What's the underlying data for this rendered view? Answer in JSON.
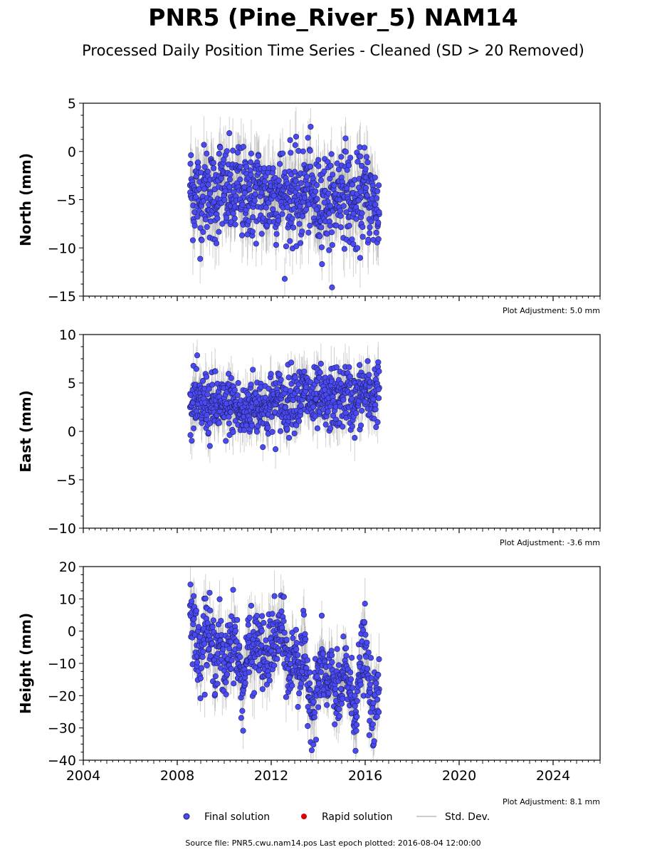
{
  "title": "PNR5 (Pine_River_5) NAM14",
  "subtitle": "Processed Daily Position Time Series - Cleaned (SD > 20 Removed)",
  "colors": {
    "final": "#4a4af5",
    "rapid": "#dd0000",
    "stddev": "#bbbbbb",
    "marker_edge": "#1a1a55"
  },
  "legend": [
    {
      "key": "final",
      "label": "Final solution"
    },
    {
      "key": "rapid",
      "label": "Rapid solution"
    },
    {
      "key": "stddev",
      "label": "Std. Dev."
    }
  ],
  "footer": "Source file: PNR5.cwu.nam14.pos  Last epoch plotted: 2016-08-04 12:00:00",
  "chart_data": [
    {
      "type": "scatter",
      "ylabel": "North (mm)",
      "ylim": [
        -15,
        5
      ],
      "yticks": [
        5,
        0,
        -5,
        -10,
        -15
      ],
      "ytick_labels": [
        "5",
        "0",
        "−5",
        "−10",
        "−15"
      ],
      "xlim": [
        2004,
        2026
      ],
      "adjustment": "Plot Adjustment: 5.0 mm",
      "x": [
        2008.55,
        2008.7,
        2008.85,
        2009.0,
        2009.2,
        2009.4,
        2009.6,
        2009.8,
        2010.0,
        2010.2,
        2010.4,
        2010.6,
        2010.8,
        2011.0,
        2011.2,
        2011.4,
        2011.6,
        2011.8,
        2012.0,
        2012.2,
        2012.4,
        2012.6,
        2012.8,
        2013.0,
        2013.2,
        2013.4,
        2013.6,
        2013.8,
        2014.0,
        2014.2,
        2014.4,
        2014.6,
        2014.8,
        2015.0,
        2015.2,
        2015.4,
        2015.6,
        2015.8,
        2016.0,
        2016.2,
        2016.4,
        2016.59
      ],
      "y": [
        -3.5,
        -4.5,
        -4.0,
        -5.0,
        -3.8,
        -4.2,
        -5.5,
        -3.0,
        -4.5,
        -4.0,
        -5.2,
        -3.5,
        -4.8,
        -4.0,
        -5.0,
        -3.8,
        -4.5,
        -5.2,
        -4.0,
        -4.5,
        -3.8,
        -5.0,
        -4.2,
        -4.8,
        -5.5,
        -4.0,
        -3.5,
        -5.0,
        -5.8,
        -4.5,
        -5.2,
        -6.0,
        -4.5,
        -3.5,
        -4.0,
        -5.5,
        -6.0,
        -4.8,
        -4.2,
        -5.0,
        -5.5,
        -6.5
      ],
      "spread": 2.4
    },
    {
      "type": "scatter",
      "ylabel": "East (mm)",
      "ylim": [
        -10,
        10
      ],
      "yticks": [
        10,
        5,
        0,
        -5,
        -10
      ],
      "ytick_labels": [
        "10",
        "5",
        "0",
        "−5",
        "−10"
      ],
      "xlim": [
        2004,
        2026
      ],
      "adjustment": "Plot Adjustment: -3.6 mm",
      "x": [
        2008.55,
        2008.7,
        2008.85,
        2009.0,
        2009.2,
        2009.4,
        2009.6,
        2009.8,
        2010.0,
        2010.2,
        2010.4,
        2010.6,
        2010.8,
        2011.0,
        2011.2,
        2011.4,
        2011.6,
        2011.8,
        2012.0,
        2012.2,
        2012.4,
        2012.6,
        2012.8,
        2013.0,
        2013.2,
        2013.4,
        2013.6,
        2013.8,
        2014.0,
        2014.2,
        2014.4,
        2014.6,
        2014.8,
        2015.0,
        2015.2,
        2015.4,
        2015.6,
        2015.8,
        2016.0,
        2016.2,
        2016.4,
        2016.59
      ],
      "y": [
        2.5,
        3.0,
        2.8,
        2.5,
        3.2,
        2.0,
        3.0,
        2.5,
        2.0,
        3.0,
        2.8,
        2.2,
        1.5,
        2.5,
        3.0,
        2.5,
        3.2,
        2.0,
        3.0,
        2.8,
        3.5,
        2.5,
        3.5,
        4.0,
        3.2,
        4.2,
        3.5,
        2.8,
        3.5,
        3.0,
        2.5,
        3.8,
        3.0,
        3.5,
        4.0,
        3.2,
        2.8,
        3.8,
        4.2,
        3.5,
        3.8,
        4.5
      ],
      "spread": 1.6
    },
    {
      "type": "scatter",
      "ylabel": "Height (mm)",
      "ylim": [
        -40,
        20
      ],
      "yticks": [
        20,
        10,
        0,
        -10,
        -20,
        -30,
        -40
      ],
      "ytick_labels": [
        "20",
        "10",
        "0",
        "−10",
        "−20",
        "−30",
        "−40"
      ],
      "xlim": [
        2004,
        2026
      ],
      "xticks": [
        2004,
        2008,
        2012,
        2016,
        2020,
        2024
      ],
      "xtick_labels": [
        "2004",
        "2008",
        "2012",
        "2016",
        "2020",
        "2024"
      ],
      "adjustment": "Plot Adjustment: 8.1 mm",
      "x": [
        2008.55,
        2008.7,
        2008.85,
        2009.0,
        2009.2,
        2009.4,
        2009.6,
        2009.8,
        2010.0,
        2010.2,
        2010.4,
        2010.6,
        2010.8,
        2011.0,
        2011.2,
        2011.4,
        2011.6,
        2011.8,
        2012.0,
        2012.2,
        2012.4,
        2012.6,
        2012.8,
        2013.0,
        2013.2,
        2013.4,
        2013.6,
        2013.8,
        2014.0,
        2014.2,
        2014.4,
        2014.6,
        2014.8,
        2015.0,
        2015.2,
        2015.4,
        2015.6,
        2015.8,
        2016.0,
        2016.2,
        2016.4,
        2016.59
      ],
      "y": [
        8.0,
        4.0,
        -8.0,
        -5.0,
        2.0,
        -3.0,
        -8.0,
        -2.0,
        -15.0,
        -4.0,
        0.0,
        -10.0,
        -18.0,
        -5.0,
        -8.0,
        -3.0,
        -6.0,
        -12.0,
        -2.0,
        -5.0,
        2.0,
        -6.0,
        -14.0,
        -5.0,
        -12.0,
        -8.0,
        -18.0,
        -25.0,
        -15.0,
        -10.0,
        -20.0,
        -12.0,
        -22.0,
        -18.0,
        -12.0,
        -20.0,
        -25.0,
        -10.0,
        -5.0,
        -22.0,
        -25.0,
        -18.0
      ],
      "spread": 5.5
    }
  ]
}
